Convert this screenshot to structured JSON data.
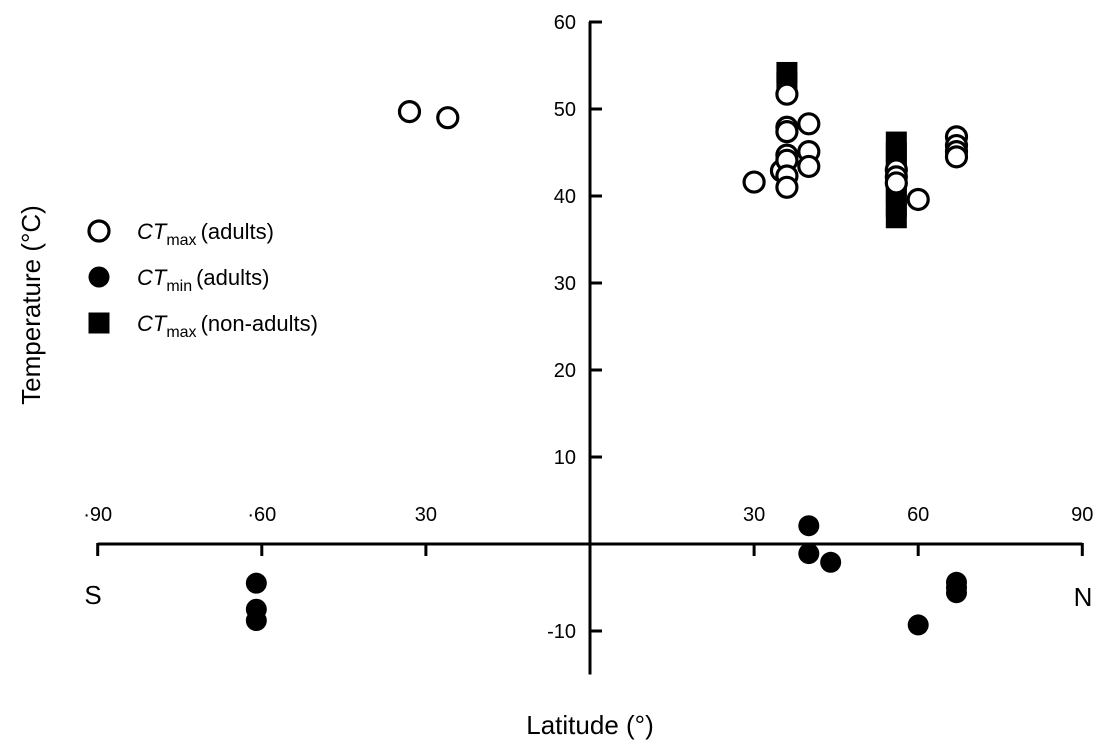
{
  "chart_data": {
    "type": "scatter",
    "xlabel": "Latitude (°)",
    "ylabel": "Temperature (°C)",
    "xlim": [
      -90,
      90
    ],
    "ylim": [
      -15,
      60
    ],
    "x_ticks": [
      -90,
      -60,
      -30,
      30,
      60,
      90
    ],
    "x_tick_labels": [
      "·90",
      "·60",
      "30",
      "30",
      "60",
      "90"
    ],
    "y_ticks": [
      -10,
      10,
      20,
      30,
      40,
      50,
      60
    ],
    "y_tick_labels": [
      "-10",
      "10",
      "20",
      "30",
      "40",
      "50",
      "60"
    ],
    "direction_labels": {
      "south": "S",
      "north": "N"
    },
    "legend_position": "left",
    "grid": false,
    "series": [
      {
        "name": "CTmax (adults)",
        "label_main": "CT",
        "label_sub": "max",
        "label_rest": "(adults)",
        "marker": "open-circle",
        "points": [
          {
            "x": -33,
            "y": 49.7
          },
          {
            "x": -26,
            "y": 49.0
          },
          {
            "x": 30,
            "y": 41.6
          },
          {
            "x": 35,
            "y": 42.9
          },
          {
            "x": 36,
            "y": 51.7
          },
          {
            "x": 36,
            "y": 47.9
          },
          {
            "x": 36,
            "y": 47.4
          },
          {
            "x": 36,
            "y": 44.7
          },
          {
            "x": 36,
            "y": 44.1
          },
          {
            "x": 36,
            "y": 42.3
          },
          {
            "x": 36,
            "y": 41.0
          },
          {
            "x": 40,
            "y": 48.3
          },
          {
            "x": 40,
            "y": 45.1
          },
          {
            "x": 40,
            "y": 43.4
          },
          {
            "x": 56,
            "y": 43.0
          },
          {
            "x": 56,
            "y": 42.2
          },
          {
            "x": 56,
            "y": 41.5
          },
          {
            "x": 60,
            "y": 39.6
          },
          {
            "x": 67,
            "y": 46.8
          },
          {
            "x": 67,
            "y": 45.8
          },
          {
            "x": 67,
            "y": 45.1
          },
          {
            "x": 67,
            "y": 44.5
          }
        ]
      },
      {
        "name": "CTmin (adults)",
        "label_main": "CT",
        "label_sub": "min",
        "label_rest": "(adults)",
        "marker": "filled-circle",
        "points": [
          {
            "x": -61,
            "y": -4.5
          },
          {
            "x": -61,
            "y": -7.5
          },
          {
            "x": -61,
            "y": -8.8
          },
          {
            "x": 40,
            "y": 2.1
          },
          {
            "x": 40,
            "y": -1.1
          },
          {
            "x": 44,
            "y": -2.1
          },
          {
            "x": 60,
            "y": -9.3
          },
          {
            "x": 67,
            "y": -4.4
          },
          {
            "x": 67,
            "y": -5.0
          },
          {
            "x": 67,
            "y": -5.6
          }
        ]
      },
      {
        "name": "CTmax (non-adults)",
        "label_main": "CT",
        "label_sub": "max",
        "label_rest": "(non-adults)",
        "marker": "filled-square",
        "points": [
          {
            "x": 36,
            "y": 54.2
          },
          {
            "x": 36,
            "y": 53.0
          },
          {
            "x": 56,
            "y": 46.2
          },
          {
            "x": 56,
            "y": 45.0
          },
          {
            "x": 56,
            "y": 43.8
          },
          {
            "x": 56,
            "y": 42.5
          },
          {
            "x": 56,
            "y": 41.2
          },
          {
            "x": 56,
            "y": 40.0
          },
          {
            "x": 56,
            "y": 38.8
          },
          {
            "x": 56,
            "y": 37.5
          }
        ]
      }
    ]
  }
}
